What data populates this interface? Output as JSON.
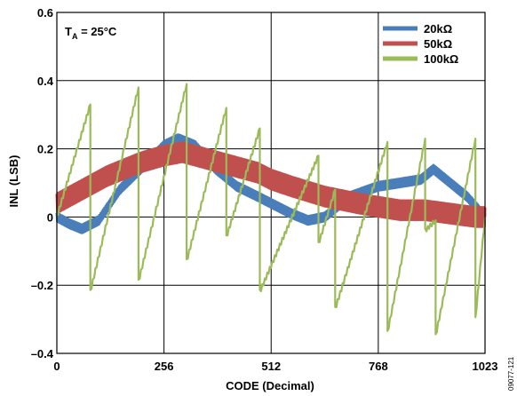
{
  "chart_data": {
    "type": "line",
    "xlabel": "CODE (Decimal)",
    "ylabel": "INL (LSB)",
    "xlim": [
      0,
      1023
    ],
    "ylim": [
      -0.4,
      0.6
    ],
    "xticks": [
      0,
      256,
      512,
      768,
      1023
    ],
    "yticks": [
      -0.4,
      -0.2,
      0,
      0.2,
      0.4,
      0.6
    ],
    "xtick_labels": [
      "0",
      "256",
      "512",
      "768",
      "1023"
    ],
    "ytick_labels": [
      "–0.4",
      "–0.2",
      "0",
      "0.2",
      "0.4",
      "0.6"
    ],
    "grid": true,
    "legend_position": "top-right",
    "annotation": {
      "main": "T",
      "sub": "A",
      "rest": " = 25°C"
    },
    "figure_id": "09077-121",
    "series": [
      {
        "name": "20kΩ",
        "color": "#4a7ebb",
        "band": 0.012,
        "envelope": [
          [
            0,
            0.0
          ],
          [
            30,
            -0.02
          ],
          [
            60,
            -0.035
          ],
          [
            100,
            -0.01
          ],
          [
            150,
            0.08
          ],
          [
            200,
            0.14
          ],
          [
            256,
            0.21
          ],
          [
            290,
            0.23
          ],
          [
            330,
            0.21
          ],
          [
            380,
            0.14
          ],
          [
            430,
            0.09
          ],
          [
            480,
            0.06
          ],
          [
            512,
            0.04
          ],
          [
            560,
            0.01
          ],
          [
            600,
            -0.01
          ],
          [
            640,
            0.0
          ],
          [
            700,
            0.06
          ],
          [
            768,
            0.09
          ],
          [
            820,
            0.1
          ],
          [
            870,
            0.11
          ],
          [
            900,
            0.14
          ],
          [
            930,
            0.11
          ],
          [
            980,
            0.06
          ],
          [
            1023,
            0.0
          ]
        ]
      },
      {
        "name": "50kΩ",
        "color": "#c0504d",
        "band": 0.028,
        "envelope": [
          [
            0,
            0.04
          ],
          [
            60,
            0.08
          ],
          [
            120,
            0.12
          ],
          [
            200,
            0.16
          ],
          [
            256,
            0.18
          ],
          [
            300,
            0.19
          ],
          [
            360,
            0.17
          ],
          [
            420,
            0.15
          ],
          [
            480,
            0.13
          ],
          [
            512,
            0.11
          ],
          [
            560,
            0.09
          ],
          [
            640,
            0.06
          ],
          [
            720,
            0.04
          ],
          [
            768,
            0.03
          ],
          [
            820,
            0.02
          ],
          [
            880,
            0.02
          ],
          [
            940,
            0.01
          ],
          [
            1000,
            0.0
          ],
          [
            1023,
            0.0
          ]
        ]
      },
      {
        "name": "100kΩ",
        "color": "#9bbb59",
        "sawtooth": [
          [
            0,
            0.0
          ],
          [
            80,
            0.33
          ],
          [
            80,
            -0.22
          ],
          [
            195,
            0.38
          ],
          [
            195,
            -0.19
          ],
          [
            310,
            0.39
          ],
          [
            310,
            -0.13
          ],
          [
            405,
            0.32
          ],
          [
            405,
            -0.06
          ],
          [
            485,
            0.26
          ],
          [
            485,
            -0.22
          ],
          [
            625,
            0.18
          ],
          [
            625,
            -0.08
          ],
          [
            665,
            0.08
          ],
          [
            665,
            -0.27
          ],
          [
            790,
            0.22
          ],
          [
            790,
            -0.34
          ],
          [
            880,
            0.23
          ],
          [
            880,
            -0.04
          ],
          [
            905,
            -0.01
          ],
          [
            905,
            -0.35
          ],
          [
            1000,
            0.23
          ],
          [
            1000,
            -0.3
          ],
          [
            1023,
            0.0
          ]
        ]
      }
    ]
  }
}
